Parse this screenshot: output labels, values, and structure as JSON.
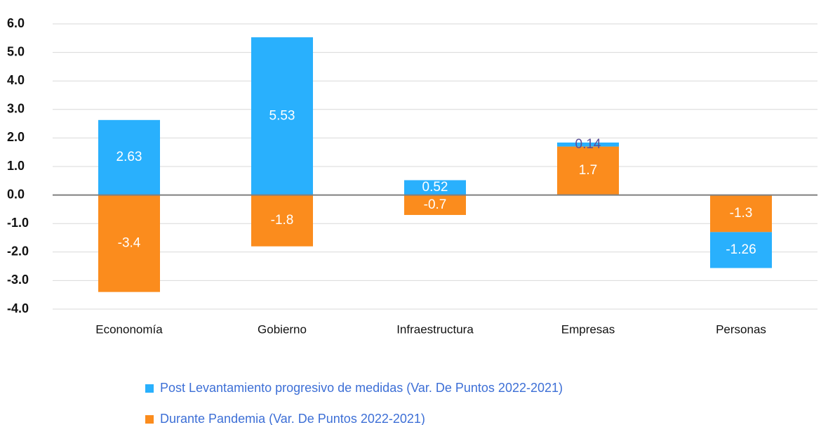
{
  "chart_data": {
    "type": "stacked_bar",
    "categories": [
      "Econonomía",
      "Gobierno",
      "Infraestructura",
      "Empresas",
      "Personas"
    ],
    "series": [
      {
        "name": "Post Levantamiento progresivo de medidas (Var. De Puntos 2022-2021)",
        "color": "#29b0fd",
        "values": [
          2.63,
          5.53,
          0.52,
          0.14,
          -1.26
        ]
      },
      {
        "name": "Durante Pandemia (Var. De Puntos 2022-2021)",
        "color": "#fb8c1d",
        "values": [
          -3.4,
          -1.8,
          -0.7,
          1.7,
          -1.3
        ]
      }
    ],
    "ylim": [
      -4,
      6
    ],
    "yticks": [
      {
        "value": 6,
        "label": "6.0"
      },
      {
        "value": 5,
        "label": "5.0"
      },
      {
        "value": 4,
        "label": "4.0"
      },
      {
        "value": 3,
        "label": "3.0"
      },
      {
        "value": 2,
        "label": "2.0"
      },
      {
        "value": 1,
        "label": "1.0"
      },
      {
        "value": 0,
        "label": "0.0"
      },
      {
        "value": -1,
        "label": "-1.0"
      },
      {
        "value": -2,
        "label": "-2.0"
      },
      {
        "value": -3,
        "label": "-3.0"
      },
      {
        "value": -4,
        "label": "-4.0"
      }
    ],
    "grid": true,
    "legend": "bottom"
  }
}
